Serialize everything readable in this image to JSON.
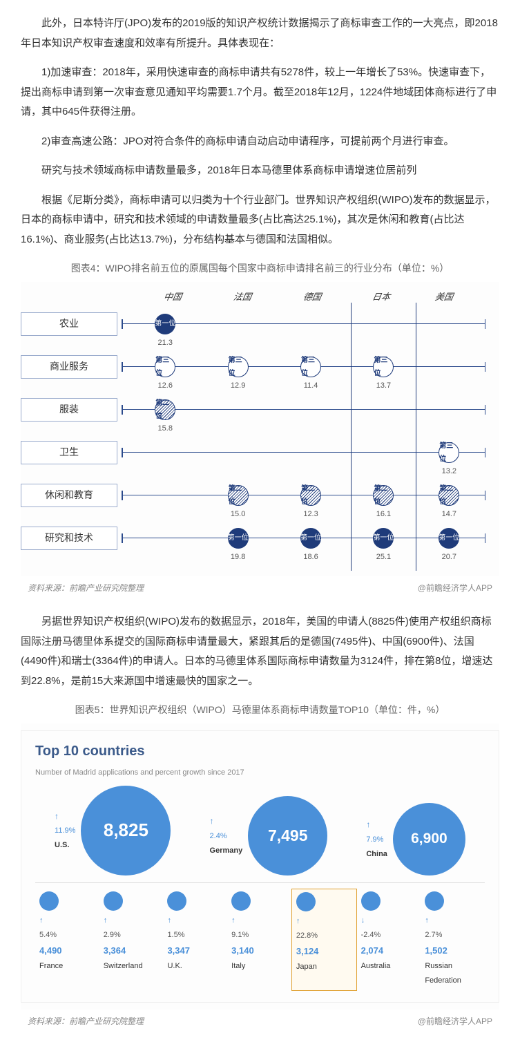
{
  "paragraphs": {
    "p1": "此外，日本特许厅(JPO)发布的2019版的知识产权统计数据揭示了商标审查工作的一大亮点，即2018年日本知识产权审查速度和效率有所提升。具体表现在：",
    "p2": "1)加速审查：2018年，采用快速审查的商标申请共有5278件，较上一年增长了53%。快速审查下，提出商标申请到第一次审查意见通知平均需要1.7个月。截至2018年12月，1224件地域团体商标进行了申请，其中645件获得注册。",
    "p3": "2)审查高速公路：JPO对符合条件的商标申请自动启动申请程序，可提前两个月进行审查。",
    "p4": "研究与技术领域商标申请数量最多，2018年日本马德里体系商标申请增速位居前列",
    "p5": "根据《尼斯分类》，商标申请可以归类为十个行业部门。世界知识产权组织(WIPO)发布的数据显示，日本的商标申请中，研究和技术领域的申请数量最多(占比高达25.1%)，其次是休闲和教育(占比达16.1%)、商业服务(占比达13.7%)，分布结构基本与德国和法国相似。",
    "p6": "另据世界知识产权组织(WIPO)发布的数据显示，2018年，美国的申请人(8825件)使用产权组织商标国际注册马德里体系提交的国际商标申请量最大，紧跟其后的是德国(7495件)、中国(6900件)、法国(4490件)和瑞士(3364件)的申请人。日本的马德里体系国际商标申请数量为3124件，排在第8位，增速达到22.8%，是前15大来源国中增速最快的国家之一。"
  },
  "chart4": {
    "title": "图表4：WIPO排名前五位的原属国每个国家中商标申请排名前三的行业分布（单位：%）",
    "countries": [
      "中国",
      "法国",
      "德国",
      "日本",
      "美国"
    ],
    "highlight_country_index": 3,
    "row_labels": [
      "农业",
      "商业服务",
      "服装",
      "卫生",
      "休闲和教育",
      "研究和技术"
    ],
    "rank_labels": {
      "1": "第一位",
      "2": "第二位",
      "3": "第三位"
    },
    "positions_pct": [
      12,
      32,
      52,
      72,
      90
    ],
    "data": [
      [
        {
          "c": 0,
          "rank": 1,
          "v": "21.3"
        }
      ],
      [
        {
          "c": 0,
          "rank": 3,
          "v": "12.6"
        },
        {
          "c": 1,
          "rank": 3,
          "v": "12.9"
        },
        {
          "c": 2,
          "rank": 3,
          "v": "11.4"
        },
        {
          "c": 3,
          "rank": 3,
          "v": "13.7"
        }
      ],
      [
        {
          "c": 0,
          "rank": 2,
          "v": "15.8"
        }
      ],
      [
        {
          "c": 4,
          "rank": 3,
          "v": "13.2"
        }
      ],
      [
        {
          "c": 1,
          "rank": 2,
          "v": "15.0"
        },
        {
          "c": 2,
          "rank": 2,
          "v": "12.3"
        },
        {
          "c": 3,
          "rank": 2,
          "v": "16.1"
        },
        {
          "c": 4,
          "rank": 2,
          "v": "14.7"
        }
      ],
      [
        {
          "c": 1,
          "rank": 1,
          "v": "19.8"
        },
        {
          "c": 2,
          "rank": 1,
          "v": "18.6"
        },
        {
          "c": 3,
          "rank": 1,
          "v": "25.1"
        },
        {
          "c": 4,
          "rank": 1,
          "v": "20.7"
        }
      ]
    ],
    "footer_left": "资料来源：前瞻产业研究院整理",
    "footer_right": "@前瞻经济学人APP"
  },
  "chart5": {
    "caption": "图表5：世界知识产权组织（WIPO）马德里体系商标申请数量TOP10（单位：件，%）",
    "title": "Top 10 countries",
    "subtitle": "Number of Madrid applications and percent growth since 2017",
    "bubble_color": "#4a90d9",
    "top3": [
      {
        "value": "8,825",
        "pct": "11.9%",
        "dir": "up",
        "name": "U.S.",
        "size": 130
      },
      {
        "value": "7,495",
        "pct": "2.4%",
        "dir": "up",
        "name": "Germany",
        "size": 115
      },
      {
        "value": "6,900",
        "pct": "7.9%",
        "dir": "up",
        "name": "China",
        "size": 105
      }
    ],
    "rest": [
      {
        "value": "4,490",
        "pct": "5.4%",
        "dir": "up",
        "name": "France",
        "hl": false
      },
      {
        "value": "3,364",
        "pct": "2.9%",
        "dir": "up",
        "name": "Switzerland",
        "hl": false
      },
      {
        "value": "3,347",
        "pct": "1.5%",
        "dir": "up",
        "name": "U.K.",
        "hl": false
      },
      {
        "value": "3,140",
        "pct": "9.1%",
        "dir": "up",
        "name": "Italy",
        "hl": false
      },
      {
        "value": "3,124",
        "pct": "22.8%",
        "dir": "up",
        "name": "Japan",
        "hl": true
      },
      {
        "value": "2,074",
        "pct": "-2.4%",
        "dir": "down",
        "name": "Australia",
        "hl": false
      },
      {
        "value": "1,502",
        "pct": "2.7%",
        "dir": "up",
        "name": "Russian Federation",
        "hl": false
      }
    ],
    "footer_left": "资料来源：前瞻产业研究院整理",
    "footer_right": "@前瞻经济学人APP"
  }
}
